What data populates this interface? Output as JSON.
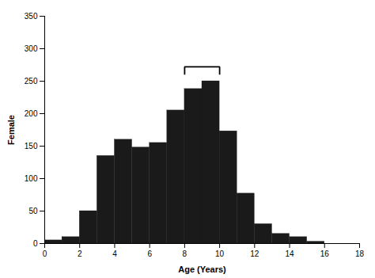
{
  "chart_data": {
    "type": "histogram",
    "bins": [
      0,
      1,
      2,
      3,
      4,
      5,
      6,
      7,
      8,
      9,
      10,
      11,
      12,
      13,
      14,
      15,
      16,
      17,
      18
    ],
    "values": [
      5,
      10,
      50,
      135,
      160,
      148,
      155,
      205,
      238,
      250,
      173,
      77,
      30,
      15,
      10,
      3,
      0,
      0
    ],
    "color": "#1a1a1a",
    "x_label": "Age (Years)",
    "y_label": "Female",
    "xlim": [
      0,
      18
    ],
    "ylim": [
      0,
      350
    ],
    "xticks": [
      0,
      2,
      4,
      6,
      8,
      10,
      12,
      14,
      16,
      18
    ],
    "yticks": [
      0,
      50,
      100,
      150,
      200,
      250,
      300,
      350
    ],
    "grid": false,
    "annotations": [
      {
        "type": "bracket",
        "x": [
          8,
          10
        ],
        "y": [
          272,
          260
        ]
      }
    ]
  }
}
